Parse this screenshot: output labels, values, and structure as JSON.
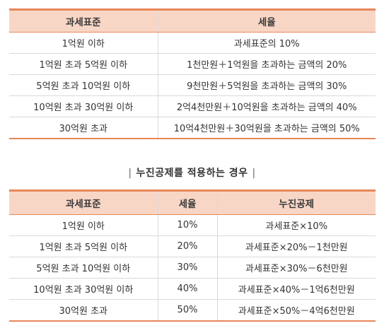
{
  "table1": {
    "headers": [
      "과세표준",
      "세율"
    ],
    "rows": [
      [
        "1억원 이하",
        "과세표준의 10%"
      ],
      [
        "1억원 초과 5억원 이하",
        "1천만원＋1억원을 초과하는 금액의 20%"
      ],
      [
        "5억원 초과 10억원 이하",
        "9천만원＋5억원을 초과하는 금액의 30%"
      ],
      [
        "10억원 초과 30억원 이하",
        "2억4천만원＋10억원을 초과하는 금액의 40%"
      ],
      [
        "30억원 초과",
        "10억4천만원＋30억원을 초과하는 금액의 50%"
      ]
    ]
  },
  "section_heading": {
    "left_bar": "|",
    "text": "누진공제를 적용하는 경우",
    "right_bar": "|"
  },
  "table2": {
    "headers": [
      "과세표준",
      "세율",
      "누진공제"
    ],
    "rows": [
      [
        "1억원 이하",
        "10%",
        "과세표준×10%"
      ],
      [
        "1억원 초과 5억원 이하",
        "20%",
        "과세표준×20%－1천만원"
      ],
      [
        "5억원 초과 10억원 이하",
        "30%",
        "과세표준×30%－6천만원"
      ],
      [
        "10억원 초과 30억원 이하",
        "40%",
        "과세표준×40%－1억6천만원"
      ],
      [
        "30억원 초과",
        "50%",
        "과세표준×50%－4억6천만원"
      ]
    ]
  },
  "colors": {
    "header_bg": "#f8d6c6",
    "accent_line": "#e8865a",
    "row_divider": "#d9d9d9"
  }
}
